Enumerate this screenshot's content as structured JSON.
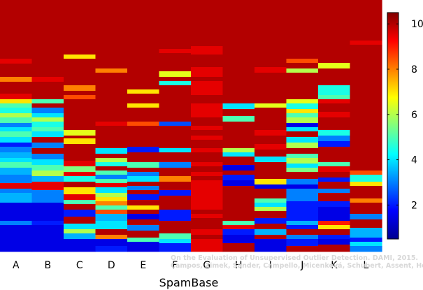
{
  "chart_data": {
    "type": "heatmap",
    "xlabel": "SpamBase",
    "categories": [
      "A",
      "B",
      "C",
      "D",
      "E",
      "F",
      "G",
      "H",
      "I",
      "J",
      "K",
      "L"
    ],
    "colorbar": {
      "range": [
        0.5,
        10.5
      ],
      "ticks": [
        "2",
        "4",
        "6",
        "8",
        "10"
      ],
      "colormap": "jet"
    },
    "credit": [
      "On the Evaluation of Unsupervised Outlier Detection. DAMI, 2015.",
      "Campos, Zimek, Sander, Campello, Micenková, Schubert, Assent, Houle"
    ],
    "columns": {
      "A": [
        [
          0,
          84,
          10
        ],
        [
          84,
          91,
          9.5
        ],
        [
          91,
          110,
          10
        ],
        [
          110,
          117,
          8
        ],
        [
          117,
          134,
          10
        ],
        [
          134,
          142,
          9.5
        ],
        [
          142,
          148,
          7
        ],
        [
          148,
          154,
          5
        ],
        [
          154,
          162,
          4.5
        ],
        [
          162,
          168,
          6
        ],
        [
          168,
          176,
          5
        ],
        [
          176,
          182,
          3
        ],
        [
          182,
          188,
          4
        ],
        [
          188,
          196,
          5
        ],
        [
          196,
          204,
          4
        ],
        [
          204,
          210,
          2
        ],
        [
          210,
          218,
          3
        ],
        [
          218,
          226,
          3.5
        ],
        [
          226,
          232,
          4
        ],
        [
          232,
          240,
          5
        ],
        [
          240,
          250,
          3.5
        ],
        [
          250,
          262,
          3
        ],
        [
          262,
          270,
          9.5
        ],
        [
          270,
          276,
          3
        ],
        [
          276,
          290,
          3.5
        ],
        [
          290,
          316,
          1.5
        ],
        [
          316,
          322,
          3
        ],
        [
          322,
          360,
          1.5
        ]
      ],
      "B": [
        [
          0,
          110,
          10
        ],
        [
          110,
          117,
          9.5
        ],
        [
          117,
          142,
          10
        ],
        [
          142,
          148,
          5
        ],
        [
          148,
          154,
          10
        ],
        [
          154,
          162,
          3
        ],
        [
          162,
          168,
          4
        ],
        [
          168,
          174,
          6
        ],
        [
          174,
          182,
          4.5
        ],
        [
          182,
          188,
          5
        ],
        [
          188,
          196,
          4
        ],
        [
          196,
          204,
          10
        ],
        [
          204,
          212,
          3
        ],
        [
          212,
          220,
          10
        ],
        [
          220,
          228,
          3
        ],
        [
          228,
          236,
          4
        ],
        [
          236,
          244,
          5
        ],
        [
          244,
          252,
          6
        ],
        [
          252,
          260,
          3.5
        ],
        [
          260,
          272,
          9.5
        ],
        [
          272,
          290,
          3
        ],
        [
          290,
          316,
          1.5
        ],
        [
          316,
          322,
          2
        ],
        [
          322,
          360,
          1.5
        ]
      ],
      "C": [
        [
          0,
          78,
          10
        ],
        [
          78,
          84,
          7
        ],
        [
          84,
          122,
          10
        ],
        [
          122,
          130,
          8
        ],
        [
          130,
          136,
          10
        ],
        [
          136,
          142,
          8.5
        ],
        [
          142,
          186,
          10
        ],
        [
          186,
          194,
          6.5
        ],
        [
          194,
          198,
          10
        ],
        [
          198,
          206,
          7
        ],
        [
          206,
          230,
          10
        ],
        [
          230,
          238,
          9.5
        ],
        [
          238,
          246,
          5.5
        ],
        [
          246,
          252,
          9.5
        ],
        [
          252,
          260,
          4.5
        ],
        [
          260,
          268,
          10
        ],
        [
          268,
          278,
          7
        ],
        [
          278,
          286,
          9.5
        ],
        [
          286,
          292,
          5
        ],
        [
          292,
          300,
          10
        ],
        [
          300,
          310,
          2
        ],
        [
          310,
          320,
          10
        ],
        [
          320,
          328,
          4
        ],
        [
          328,
          334,
          6
        ],
        [
          334,
          342,
          3.5
        ],
        [
          342,
          360,
          1.5
        ]
      ],
      "D": [
        [
          0,
          98,
          10
        ],
        [
          98,
          104,
          8
        ],
        [
          104,
          174,
          10
        ],
        [
          174,
          180,
          9.5
        ],
        [
          180,
          212,
          10
        ],
        [
          212,
          220,
          4
        ],
        [
          220,
          226,
          10
        ],
        [
          226,
          232,
          6
        ],
        [
          232,
          238,
          4.5
        ],
        [
          238,
          244,
          10
        ],
        [
          244,
          250,
          5
        ],
        [
          250,
          256,
          3
        ],
        [
          256,
          262,
          5
        ],
        [
          262,
          268,
          9.5
        ],
        [
          268,
          276,
          4
        ],
        [
          276,
          282,
          6
        ],
        [
          282,
          288,
          7
        ],
        [
          288,
          294,
          8
        ],
        [
          294,
          300,
          5
        ],
        [
          300,
          306,
          8.5
        ],
        [
          306,
          316,
          3.5
        ],
        [
          316,
          328,
          4
        ],
        [
          328,
          336,
          10
        ],
        [
          336,
          342,
          8
        ],
        [
          342,
          352,
          1.5
        ],
        [
          352,
          360,
          2
        ]
      ],
      "E": [
        [
          0,
          128,
          10
        ],
        [
          128,
          134,
          7
        ],
        [
          134,
          148,
          10
        ],
        [
          148,
          154,
          7
        ],
        [
          154,
          174,
          10
        ],
        [
          174,
          180,
          8.5
        ],
        [
          180,
          210,
          10
        ],
        [
          210,
          218,
          2
        ],
        [
          218,
          232,
          10
        ],
        [
          232,
          240,
          5
        ],
        [
          240,
          246,
          10
        ],
        [
          246,
          252,
          3
        ],
        [
          252,
          260,
          4
        ],
        [
          260,
          266,
          10
        ],
        [
          266,
          272,
          3
        ],
        [
          272,
          278,
          10
        ],
        [
          278,
          286,
          2
        ],
        [
          286,
          294,
          10
        ],
        [
          294,
          300,
          7
        ],
        [
          300,
          306,
          10
        ],
        [
          306,
          314,
          1.5
        ],
        [
          314,
          322,
          10
        ],
        [
          322,
          330,
          3
        ],
        [
          330,
          340,
          10
        ],
        [
          340,
          346,
          5
        ],
        [
          346,
          360,
          1.5
        ]
      ],
      "F": [
        [
          0,
          70,
          10
        ],
        [
          70,
          76,
          9.5
        ],
        [
          76,
          102,
          10
        ],
        [
          102,
          110,
          6.5
        ],
        [
          110,
          116,
          10
        ],
        [
          116,
          122,
          4.5
        ],
        [
          122,
          174,
          10
        ],
        [
          174,
          180,
          2.5
        ],
        [
          180,
          212,
          10
        ],
        [
          212,
          218,
          4
        ],
        [
          218,
          232,
          10
        ],
        [
          232,
          240,
          3
        ],
        [
          240,
          252,
          10
        ],
        [
          252,
          260,
          8
        ],
        [
          260,
          272,
          10
        ],
        [
          272,
          280,
          2
        ],
        [
          280,
          300,
          10
        ],
        [
          300,
          316,
          2
        ],
        [
          316,
          334,
          10
        ],
        [
          334,
          342,
          5
        ],
        [
          342,
          348,
          4
        ],
        [
          348,
          360,
          2
        ]
      ],
      "G": [
        [
          0,
          66,
          10
        ],
        [
          66,
          78,
          9.5
        ],
        [
          78,
          96,
          10
        ],
        [
          96,
          110,
          9.5
        ],
        [
          110,
          116,
          10
        ],
        [
          116,
          136,
          9.5
        ],
        [
          136,
          148,
          10
        ],
        [
          148,
          168,
          9.5
        ],
        [
          168,
          180,
          10
        ],
        [
          180,
          186,
          9.5
        ],
        [
          186,
          194,
          10
        ],
        [
          194,
          200,
          9.5
        ],
        [
          200,
          212,
          10
        ],
        [
          212,
          218,
          9.5
        ],
        [
          218,
          232,
          10
        ],
        [
          232,
          238,
          9.5
        ],
        [
          238,
          246,
          10
        ],
        [
          246,
          252,
          9.5
        ],
        [
          252,
          258,
          10
        ],
        [
          258,
          300,
          9.5
        ],
        [
          300,
          306,
          10
        ],
        [
          306,
          312,
          9.5
        ],
        [
          312,
          328,
          10
        ],
        [
          328,
          336,
          9.5
        ],
        [
          336,
          342,
          10
        ],
        [
          342,
          360,
          9.5
        ]
      ],
      "H": [
        [
          0,
          148,
          10
        ],
        [
          148,
          156,
          4
        ],
        [
          156,
          166,
          10
        ],
        [
          166,
          174,
          5
        ],
        [
          174,
          212,
          10
        ],
        [
          212,
          218,
          6
        ],
        [
          218,
          224,
          4
        ],
        [
          224,
          236,
          10
        ],
        [
          236,
          244,
          1.5
        ],
        [
          244,
          250,
          10
        ],
        [
          250,
          258,
          2
        ],
        [
          258,
          266,
          1.5
        ],
        [
          266,
          316,
          10
        ],
        [
          316,
          322,
          5
        ],
        [
          322,
          328,
          9.5
        ],
        [
          328,
          336,
          2
        ],
        [
          336,
          348,
          1.5
        ],
        [
          348,
          360,
          10
        ]
      ],
      "I": [
        [
          0,
          96,
          10
        ],
        [
          96,
          104,
          9.5
        ],
        [
          104,
          148,
          10
        ],
        [
          148,
          154,
          6.5
        ],
        [
          154,
          186,
          10
        ],
        [
          186,
          194,
          9.5
        ],
        [
          194,
          206,
          10
        ],
        [
          206,
          214,
          9.5
        ],
        [
          214,
          224,
          10
        ],
        [
          224,
          232,
          4
        ],
        [
          232,
          256,
          10
        ],
        [
          256,
          264,
          7
        ],
        [
          264,
          270,
          1.5
        ],
        [
          270,
          284,
          10
        ],
        [
          284,
          290,
          5
        ],
        [
          290,
          296,
          4
        ],
        [
          296,
          302,
          6
        ],
        [
          302,
          312,
          10
        ],
        [
          312,
          320,
          2
        ],
        [
          320,
          328,
          10
        ],
        [
          328,
          336,
          3.5
        ],
        [
          336,
          342,
          10
        ],
        [
          342,
          360,
          1.5
        ]
      ],
      "J": [
        [
          0,
          84,
          10
        ],
        [
          84,
          90,
          8.5
        ],
        [
          90,
          98,
          10
        ],
        [
          98,
          104,
          6
        ],
        [
          104,
          142,
          10
        ],
        [
          142,
          148,
          6.5
        ],
        [
          148,
          156,
          4.5
        ],
        [
          156,
          162,
          7
        ],
        [
          162,
          168,
          5
        ],
        [
          168,
          176,
          6
        ],
        [
          176,
          182,
          1.5
        ],
        [
          182,
          188,
          4
        ],
        [
          188,
          196,
          10
        ],
        [
          196,
          204,
          4
        ],
        [
          204,
          212,
          6
        ],
        [
          212,
          220,
          10
        ],
        [
          220,
          226,
          5
        ],
        [
          226,
          234,
          6
        ],
        [
          234,
          240,
          4
        ],
        [
          240,
          246,
          5.5
        ],
        [
          246,
          256,
          10
        ],
        [
          256,
          264,
          3
        ],
        [
          264,
          270,
          1.5
        ],
        [
          270,
          288,
          3
        ],
        [
          288,
          316,
          2
        ],
        [
          316,
          322,
          3.5
        ],
        [
          322,
          328,
          2
        ],
        [
          328,
          336,
          10
        ],
        [
          336,
          342,
          3
        ],
        [
          342,
          352,
          2
        ],
        [
          352,
          360,
          10
        ]
      ],
      "K": [
        [
          0,
          90,
          10
        ],
        [
          90,
          98,
          6.5
        ],
        [
          98,
          122,
          10
        ],
        [
          122,
          136,
          4.5
        ],
        [
          136,
          142,
          5
        ],
        [
          142,
          148,
          9.5
        ],
        [
          148,
          160,
          10
        ],
        [
          160,
          168,
          9.5
        ],
        [
          168,
          186,
          10
        ],
        [
          186,
          194,
          4.5
        ],
        [
          194,
          202,
          3
        ],
        [
          202,
          210,
          2
        ],
        [
          210,
          232,
          10
        ],
        [
          232,
          238,
          5
        ],
        [
          238,
          246,
          9.5
        ],
        [
          246,
          254,
          10
        ],
        [
          254,
          260,
          2
        ],
        [
          260,
          270,
          10
        ],
        [
          270,
          276,
          3
        ],
        [
          276,
          288,
          10
        ],
        [
          288,
          296,
          2
        ],
        [
          296,
          316,
          1.5
        ],
        [
          316,
          322,
          9
        ],
        [
          322,
          328,
          7
        ],
        [
          328,
          336,
          10
        ],
        [
          336,
          342,
          2
        ],
        [
          342,
          350,
          1.5
        ],
        [
          350,
          360,
          10
        ]
      ],
      "L": [
        [
          0,
          58,
          10
        ],
        [
          58,
          64,
          9.5
        ],
        [
          64,
          244,
          10
        ],
        [
          244,
          250,
          8.5
        ],
        [
          250,
          260,
          4.5
        ],
        [
          260,
          266,
          7
        ],
        [
          266,
          284,
          10
        ],
        [
          284,
          290,
          8
        ],
        [
          290,
          306,
          10
        ],
        [
          306,
          314,
          3
        ],
        [
          314,
          326,
          10
        ],
        [
          326,
          340,
          3.5
        ],
        [
          340,
          346,
          2
        ],
        [
          346,
          352,
          4
        ],
        [
          352,
          360,
          3
        ]
      ]
    }
  }
}
